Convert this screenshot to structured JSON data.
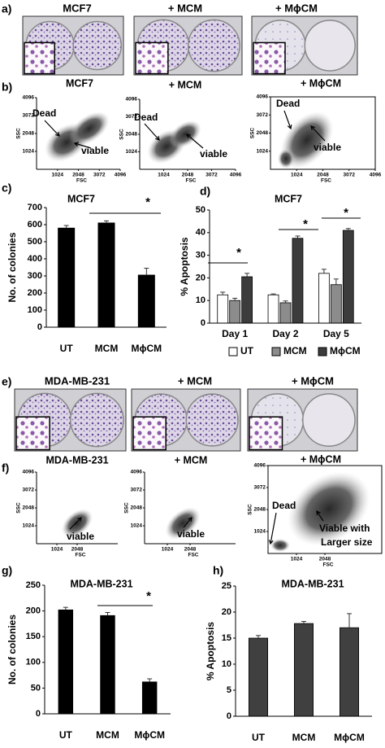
{
  "panels": {
    "a": {
      "label": "a)",
      "titles": [
        "MCF7",
        "+ MCM",
        "+ MϕCM"
      ]
    },
    "b": {
      "label": "b)",
      "plots": [
        {
          "title": "MCF7",
          "x_label": "FSC",
          "y_label": "SSC",
          "xlim": [
            0,
            4096
          ],
          "ylim": [
            0,
            4096
          ],
          "xticks": [
            1024,
            2048,
            3072,
            4096
          ],
          "yticks": [
            1024,
            2048,
            3072,
            4096
          ],
          "annotations": [
            "Dead",
            "viable"
          ]
        },
        {
          "title": "+ MCM",
          "x_label": "FSC",
          "y_label": "SSC",
          "xlim": [
            0,
            4096
          ],
          "ylim": [
            0,
            4096
          ],
          "xticks": [
            1024,
            2048,
            3072,
            4096
          ],
          "yticks": [
            1024,
            2048,
            3072,
            4096
          ],
          "annotations": [
            "Dead",
            "viable"
          ]
        },
        {
          "title": "+ MϕCM",
          "x_label": "FSC",
          "y_label": "SSC",
          "xlim": [
            0,
            4096
          ],
          "ylim": [
            0,
            4096
          ],
          "xticks": [
            1024,
            2048,
            3072,
            4096
          ],
          "yticks": [
            1024,
            2048,
            3072,
            4096
          ],
          "annotations": [
            "Dead",
            "viable"
          ]
        }
      ]
    },
    "e": {
      "label": "e)",
      "titles": [
        "MDA-MB-231",
        "+ MCM",
        "+ MϕCM"
      ]
    },
    "f": {
      "label": "f)",
      "plots": [
        {
          "title": "MDA-MB-231",
          "x_label": "FSC",
          "y_label": "SSC",
          "xlim": [
            0,
            4096
          ],
          "ylim": [
            0,
            4096
          ],
          "xticks": [
            1024,
            2048
          ],
          "yticks": [
            1024,
            2048,
            3072,
            4096
          ],
          "annotations": [
            "viable"
          ]
        },
        {
          "title": "+ MCM",
          "x_label": "FSC",
          "y_label": "SSC",
          "xlim": [
            0,
            4096
          ],
          "ylim": [
            0,
            4096
          ],
          "xticks": [
            1024,
            2048
          ],
          "yticks": [
            1024,
            2048,
            3072,
            4096
          ],
          "annotations": [
            "viable"
          ]
        },
        {
          "title": "+ MϕCM",
          "x_label": "FSC",
          "y_label": "SSC",
          "xlim": [
            0,
            4096
          ],
          "ylim": [
            0,
            4096
          ],
          "xticks": [
            1024,
            2048
          ],
          "yticks": [
            1024,
            2048,
            3072,
            4096
          ],
          "annotations": [
            "Dead",
            "Viable with",
            "Larger size"
          ]
        }
      ]
    }
  },
  "chart_data": [
    {
      "type": "bar",
      "panel": "c)",
      "title": "MCF7",
      "y_label": "No. of colonies",
      "categories": [
        "UT",
        "MCM",
        "MϕCM"
      ],
      "values": [
        580,
        610,
        305
      ],
      "errors": [
        15,
        12,
        40
      ],
      "color": "#000000",
      "ylim": [
        0,
        700
      ],
      "yticks": [
        0,
        100,
        200,
        300,
        400,
        500,
        600,
        700
      ],
      "annotations": [
        "*"
      ]
    },
    {
      "type": "bar",
      "panel": "d)",
      "title": "MCF7",
      "y_label": "% Apoptosis",
      "categories": [
        "Day 1",
        "Day 2",
        "Day 5"
      ],
      "series": [
        {
          "name": "UT",
          "color": "#ffffff",
          "values": [
            12.5,
            12.5,
            22
          ],
          "errors": [
            1.2,
            0.4,
            1.8
          ]
        },
        {
          "name": "MCM",
          "color": "#8c8c8c",
          "values": [
            10,
            9,
            17
          ],
          "errors": [
            1,
            0.8,
            2.5
          ]
        },
        {
          "name": "MϕCM",
          "color": "#3c3c3c",
          "values": [
            20.5,
            37.5,
            41
          ],
          "errors": [
            1.5,
            1,
            0.8
          ]
        }
      ],
      "ylim": [
        0,
        50
      ],
      "yticks": [
        0,
        10,
        20,
        30,
        40,
        50
      ],
      "legend": "bottom",
      "annotations": [
        "*",
        "*",
        "*"
      ]
    },
    {
      "type": "bar",
      "panel": "g)",
      "title": "MDA-MB-231",
      "y_label": "No. of colonies",
      "categories": [
        "UT",
        "MCM",
        "MϕCM"
      ],
      "values": [
        202,
        191,
        62
      ],
      "errors": [
        5,
        6,
        6
      ],
      "color": "#000000",
      "ylim": [
        0,
        250
      ],
      "yticks": [
        0,
        50,
        100,
        150,
        200,
        250
      ],
      "annotations": [
        "*"
      ]
    },
    {
      "type": "bar",
      "panel": "h)",
      "title": "MDA-MB-231",
      "y_label": "% Apoptosis",
      "categories": [
        "UT",
        "MCM",
        "MϕCM"
      ],
      "values": [
        15,
        17.8,
        17
      ],
      "errors": [
        0.5,
        0.4,
        2.7
      ],
      "color": "#404040",
      "ylim": [
        0,
        25
      ],
      "yticks": [
        0,
        5,
        10,
        15,
        20,
        25
      ]
    }
  ]
}
